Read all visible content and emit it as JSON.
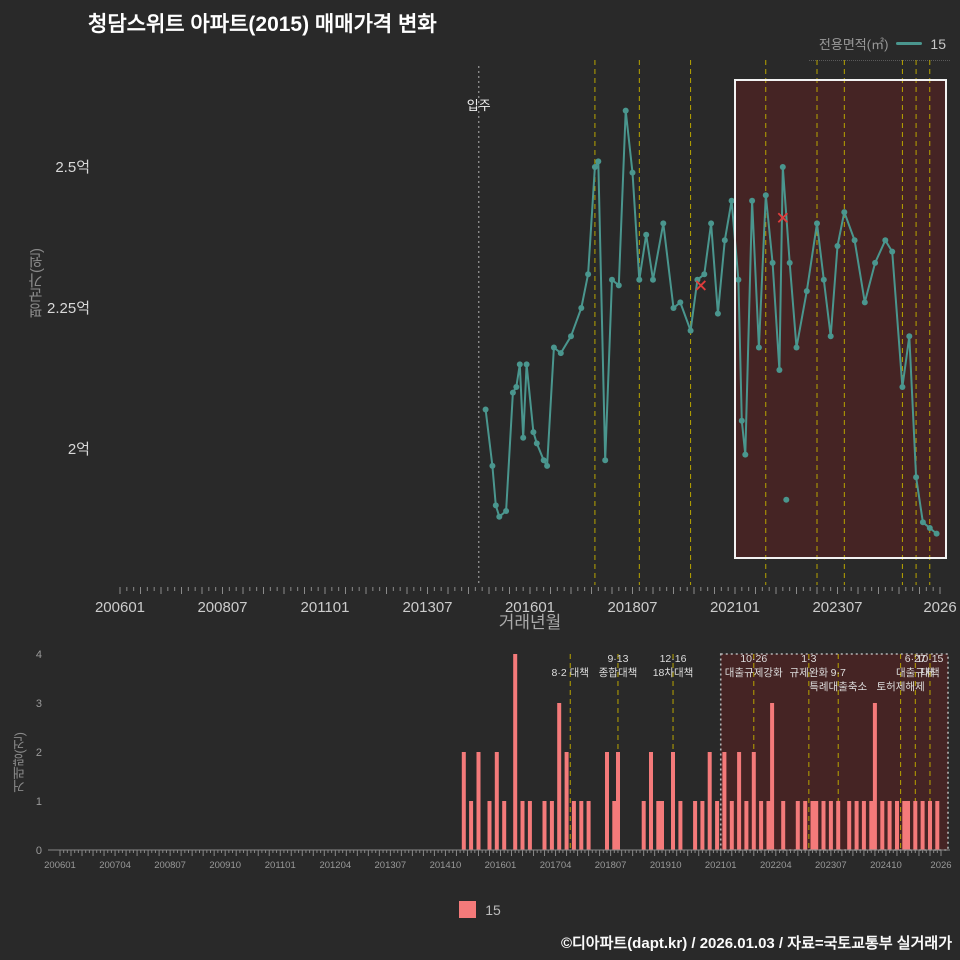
{
  "header": {
    "title": "청담스위트 아파트(2015) 매매가격 변화"
  },
  "legend_top": {
    "label": "전용면적(㎡)",
    "series_name": "15"
  },
  "legend_bottom": {
    "series_name": "15"
  },
  "axes": {
    "price_y": "평균가(원)",
    "price_x": "거래년월",
    "volume_y": "거래량(건)"
  },
  "footer": {
    "credit": "©디아파트(dapt.kr) / 2026.01.03 / 자료=국토교통부 실거래가"
  },
  "colors": {
    "background": "#292929",
    "teal": "#4a968e",
    "bar": "#f47a7a",
    "policy_line": "#b8a400",
    "cancel": "#e03c3c",
    "highlight_fill": "rgba(122,26,26,0.34)"
  },
  "policies": [
    {
      "ym": "201708",
      "lines": [
        "8·2 대책"
      ],
      "rows": [
        1
      ]
    },
    {
      "ym": "201809",
      "lines": [
        "9·13",
        "종합대책"
      ],
      "rows": [
        0,
        1
      ]
    },
    {
      "ym": "201912",
      "lines": [
        "12·16",
        "18차대책"
      ],
      "rows": [
        0,
        1
      ]
    },
    {
      "ym": "202110",
      "lines": [
        "10·26",
        "대출규제강화"
      ],
      "rows": [
        0,
        1
      ]
    },
    {
      "ym": "202301",
      "lines": [
        "1·3",
        "규제완화"
      ],
      "rows": [
        0,
        1
      ]
    },
    {
      "ym": "202309",
      "lines": [
        "9·7",
        "특례대출축소"
      ],
      "rows": [
        1,
        2
      ]
    },
    {
      "ym": "202502",
      "lines": [
        "토허제해제"
      ],
      "rows": [
        2
      ]
    },
    {
      "ym": "202506",
      "lines": [
        "6·27",
        "대출규제"
      ],
      "rows": [
        0,
        1
      ]
    },
    {
      "ym": "202510",
      "lines": [
        "10·15",
        "대책"
      ],
      "rows": [
        0,
        1
      ]
    }
  ],
  "chart_data": [
    {
      "type": "line",
      "title": "청담스위트 아파트(2015) 매매가격 변화",
      "xlabel": "거래년월",
      "ylabel": "평균가(원)",
      "x_start": "200601",
      "x_end": "202601",
      "ylim": [
        1.76,
        2.69
      ],
      "x_ticks": [
        {
          "label": "200601",
          "m": 0
        },
        {
          "label": "200807",
          "m": 30
        },
        {
          "label": "201101",
          "m": 60
        },
        {
          "label": "201307",
          "m": 90
        },
        {
          "label": "201601",
          "m": 120
        },
        {
          "label": "201807",
          "m": 150
        },
        {
          "label": "202101",
          "m": 180
        },
        {
          "label": "202307",
          "m": 210
        },
        {
          "label": "2026",
          "m": 240
        }
      ],
      "y_ticks": [
        {
          "label": "2억",
          "v": 2.0
        },
        {
          "label": "2.25억",
          "v": 2.25
        },
        {
          "label": "2.5억",
          "v": 2.5
        }
      ],
      "move_in": {
        "ym": "201410",
        "label": "입주"
      },
      "highlight_from": "202101",
      "legend_position": "top-right",
      "series": [
        {
          "name": "15",
          "points": [
            [
              "201412",
              2.07
            ],
            [
              "201502",
              1.97
            ],
            [
              "201503",
              1.9
            ],
            [
              "201504",
              1.88
            ],
            [
              "201506",
              1.89
            ],
            [
              "201508",
              2.1
            ],
            [
              "201509",
              2.11
            ],
            [
              "201510",
              2.15
            ],
            [
              "201511",
              2.02
            ],
            [
              "201512",
              2.15
            ],
            [
              "201602",
              2.03
            ],
            [
              "201603",
              2.01
            ],
            [
              "201605",
              1.98
            ],
            [
              "201606",
              1.97
            ],
            [
              "201608",
              2.18
            ],
            [
              "201610",
              2.17
            ],
            [
              "201701",
              2.2
            ],
            [
              "201704",
              2.25
            ],
            [
              "201706",
              2.31
            ],
            [
              "201708",
              2.5
            ],
            [
              "201709",
              2.51
            ],
            [
              "201711",
              1.98
            ],
            [
              "201801",
              2.3
            ],
            [
              "201803",
              2.29
            ],
            [
              "201805",
              2.6
            ],
            [
              "201807",
              2.49
            ],
            [
              "201809",
              2.3
            ],
            [
              "201811",
              2.38
            ],
            [
              "201901",
              2.3
            ],
            [
              "201904",
              2.4
            ],
            [
              "201907",
              2.25
            ],
            [
              "201909",
              2.26
            ],
            [
              "201912",
              2.21
            ],
            [
              "202002",
              2.3
            ],
            [
              "202004",
              2.31
            ],
            [
              "202006",
              2.4
            ],
            [
              "202008",
              2.24
            ],
            [
              "202010",
              2.37
            ],
            [
              "202012",
              2.44
            ],
            [
              "202102",
              2.3
            ],
            [
              "202103",
              2.05
            ],
            [
              "202104",
              1.99
            ],
            [
              "202106",
              2.44
            ],
            [
              "202108",
              2.18
            ],
            [
              "202110",
              2.45
            ],
            [
              "202112",
              2.33
            ],
            [
              "202202",
              2.14
            ],
            [
              "202203",
              2.5
            ],
            [
              "202205",
              2.33
            ],
            [
              "202207",
              2.18
            ],
            [
              "202210",
              2.28
            ],
            [
              "202301",
              2.4
            ],
            [
              "202303",
              2.3
            ],
            [
              "202305",
              2.2
            ],
            [
              "202307",
              2.36
            ],
            [
              "202309",
              2.42
            ],
            [
              "202312",
              2.37
            ],
            [
              "202403",
              2.26
            ],
            [
              "202406",
              2.33
            ],
            [
              "202409",
              2.37
            ],
            [
              "202411",
              2.35
            ],
            [
              "202502",
              2.11
            ],
            [
              "202504",
              2.2
            ],
            [
              "202506",
              1.95
            ],
            [
              "202508",
              1.87
            ],
            [
              "202510",
              1.86
            ],
            [
              "202512",
              1.85
            ]
          ]
        }
      ],
      "extra_points": [
        [
          "202204",
          1.91
        ]
      ],
      "cancelled": [
        [
          "202003",
          2.29
        ],
        [
          "202203",
          2.41
        ]
      ]
    },
    {
      "type": "bar",
      "xlabel": "",
      "ylabel": "거래량(건)",
      "x_start": "200601",
      "x_end": "202601",
      "ylim": [
        0,
        4
      ],
      "x_ticks": [
        {
          "label": "200601",
          "m": 0
        },
        {
          "label": "200704",
          "m": 15
        },
        {
          "label": "200807",
          "m": 30
        },
        {
          "label": "200910",
          "m": 45
        },
        {
          "label": "201101",
          "m": 60
        },
        {
          "label": "201204",
          "m": 75
        },
        {
          "label": "201307",
          "m": 90
        },
        {
          "label": "201410",
          "m": 105
        },
        {
          "label": "201601",
          "m": 120
        },
        {
          "label": "201704",
          "m": 135
        },
        {
          "label": "201807",
          "m": 150
        },
        {
          "label": "201910",
          "m": 165
        },
        {
          "label": "202101",
          "m": 180
        },
        {
          "label": "202204",
          "m": 195
        },
        {
          "label": "202307",
          "m": 210
        },
        {
          "label": "202410",
          "m": 225
        },
        {
          "label": "2026",
          "m": 240
        }
      ],
      "y_ticks": [
        0,
        1,
        2,
        3,
        4
      ],
      "highlight_from": "202101",
      "legend_position": "bottom-center",
      "series": [
        {
          "name": "15",
          "bars": [
            [
              "201503",
              2
            ],
            [
              "201505",
              1
            ],
            [
              "201507",
              2
            ],
            [
              "201510",
              1
            ],
            [
              "201512",
              2
            ],
            [
              "201602",
              1
            ],
            [
              "201605",
              4
            ],
            [
              "201607",
              1
            ],
            [
              "201609",
              1
            ],
            [
              "201701",
              1
            ],
            [
              "201703",
              1
            ],
            [
              "201705",
              3
            ],
            [
              "201707",
              2
            ],
            [
              "201709",
              1
            ],
            [
              "201711",
              1
            ],
            [
              "201801",
              1
            ],
            [
              "201806",
              2
            ],
            [
              "201808",
              1
            ],
            [
              "201809",
              2
            ],
            [
              "201904",
              1
            ],
            [
              "201906",
              2
            ],
            [
              "201908",
              1
            ],
            [
              "201909",
              1
            ],
            [
              "201912",
              2
            ],
            [
              "202002",
              1
            ],
            [
              "202006",
              1
            ],
            [
              "202008",
              1
            ],
            [
              "202010",
              2
            ],
            [
              "202012",
              1
            ],
            [
              "202102",
              2
            ],
            [
              "202104",
              1
            ],
            [
              "202106",
              2
            ],
            [
              "202108",
              1
            ],
            [
              "202110",
              2
            ],
            [
              "202112",
              1
            ],
            [
              "202202",
              1
            ],
            [
              "202203",
              3
            ],
            [
              "202206",
              1
            ],
            [
              "202210",
              1
            ],
            [
              "202212",
              1
            ],
            [
              "202302",
              1
            ],
            [
              "202303",
              1
            ],
            [
              "202305",
              1
            ],
            [
              "202307",
              1
            ],
            [
              "202309",
              1
            ],
            [
              "202312",
              1
            ],
            [
              "202402",
              1
            ],
            [
              "202404",
              1
            ],
            [
              "202406",
              1
            ],
            [
              "202407",
              3
            ],
            [
              "202409",
              1
            ],
            [
              "202411",
              1
            ],
            [
              "202501",
              1
            ],
            [
              "202503",
              1
            ],
            [
              "202504",
              1
            ],
            [
              "202506",
              1
            ],
            [
              "202508",
              1
            ],
            [
              "202510",
              1
            ],
            [
              "202512",
              1
            ]
          ]
        }
      ]
    }
  ]
}
